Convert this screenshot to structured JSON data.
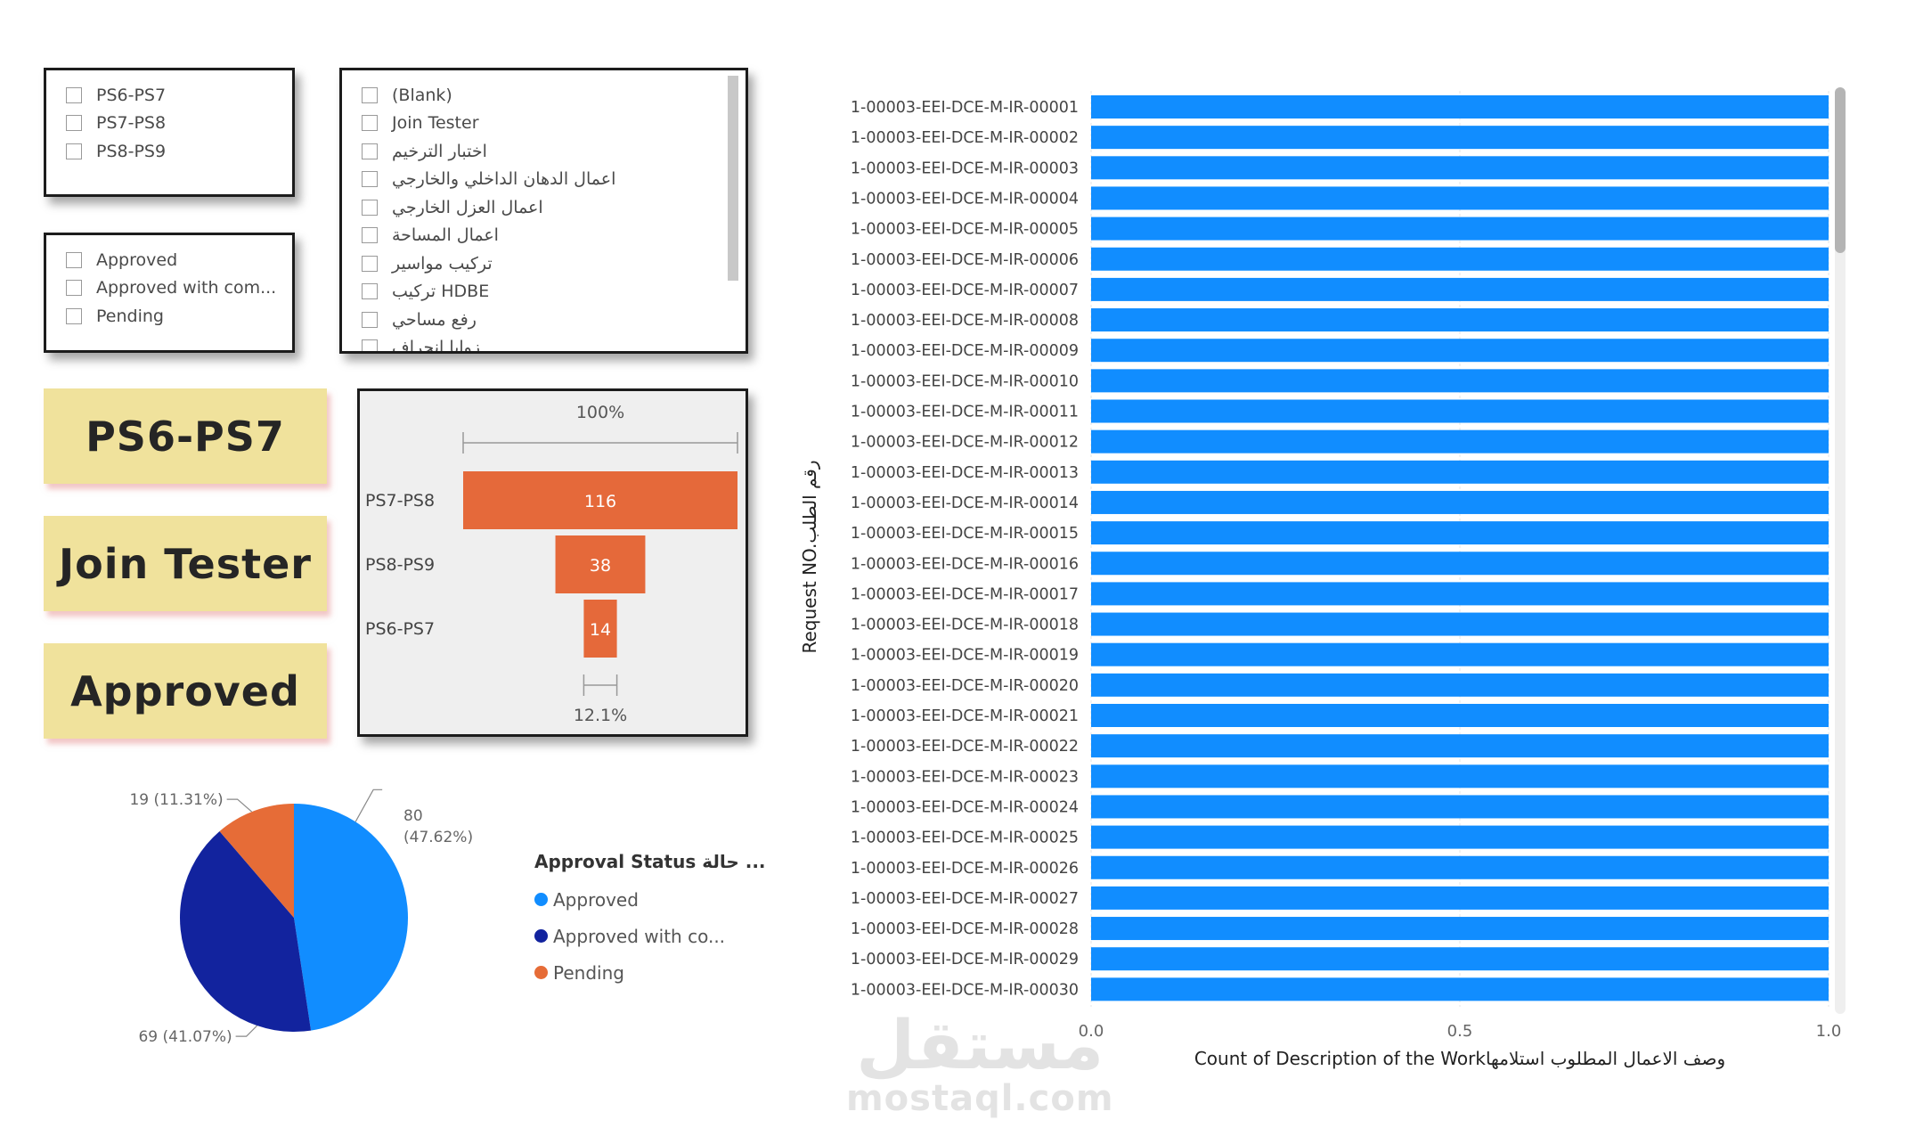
{
  "slicers": {
    "stage": {
      "items": [
        "PS6-PS7",
        "PS7-PS8",
        "PS8-PS9"
      ]
    },
    "status": {
      "items": [
        "Approved",
        "Approved with com...",
        "Pending"
      ]
    },
    "work": {
      "items": [
        "(Blank)",
        "Join Tester",
        "اختبار الترخيم",
        "اعمال الدهان الداخلي والخارجي",
        "اعمال العزل الخارجي",
        "اعمال المساحة",
        "تركيب مواسير",
        "تركيب HDBE",
        "رفع مساحي",
        "زوايا انحراف"
      ]
    }
  },
  "cards": [
    "PS6-PS7",
    "Join Tester",
    "Approved"
  ],
  "chart_data": [
    {
      "type": "funnel",
      "categories": [
        "PS7-PS8",
        "PS8-PS9",
        "PS6-PS7"
      ],
      "values": [
        116,
        38,
        14
      ],
      "top_label": "100%",
      "bottom_label": "12.1%",
      "color": "#e5693a"
    },
    {
      "type": "pie",
      "legend_title": "Approval Status حالة ...",
      "legend_position": "right",
      "slices": [
        {
          "name": "Approved",
          "value": 80,
          "percent": "47.62%",
          "label": "80",
          "label2": "(47.62%)",
          "color": "#118dff"
        },
        {
          "name": "Approved with co...",
          "value": 69,
          "percent": "41.07%",
          "label": "69 (41.07%)",
          "color": "#12239e"
        },
        {
          "name": "Pending",
          "value": 19,
          "percent": "11.31%",
          "label": "19 (11.31%)",
          "color": "#e66c37"
        }
      ]
    },
    {
      "type": "bar",
      "orientation": "horizontal",
      "categories": [
        "1-00003-EEI-DCE-M-IR-00001",
        "1-00003-EEI-DCE-M-IR-00002",
        "1-00003-EEI-DCE-M-IR-00003",
        "1-00003-EEI-DCE-M-IR-00004",
        "1-00003-EEI-DCE-M-IR-00005",
        "1-00003-EEI-DCE-M-IR-00006",
        "1-00003-EEI-DCE-M-IR-00007",
        "1-00003-EEI-DCE-M-IR-00008",
        "1-00003-EEI-DCE-M-IR-00009",
        "1-00003-EEI-DCE-M-IR-00010",
        "1-00003-EEI-DCE-M-IR-00011",
        "1-00003-EEI-DCE-M-IR-00012",
        "1-00003-EEI-DCE-M-IR-00013",
        "1-00003-EEI-DCE-M-IR-00014",
        "1-00003-EEI-DCE-M-IR-00015",
        "1-00003-EEI-DCE-M-IR-00016",
        "1-00003-EEI-DCE-M-IR-00017",
        "1-00003-EEI-DCE-M-IR-00018",
        "1-00003-EEI-DCE-M-IR-00019",
        "1-00003-EEI-DCE-M-IR-00020",
        "1-00003-EEI-DCE-M-IR-00021",
        "1-00003-EEI-DCE-M-IR-00022",
        "1-00003-EEI-DCE-M-IR-00023",
        "1-00003-EEI-DCE-M-IR-00024",
        "1-00003-EEI-DCE-M-IR-00025",
        "1-00003-EEI-DCE-M-IR-00026",
        "1-00003-EEI-DCE-M-IR-00027",
        "1-00003-EEI-DCE-M-IR-00028",
        "1-00003-EEI-DCE-M-IR-00029",
        "1-00003-EEI-DCE-M-IR-00030"
      ],
      "values": [
        1,
        1,
        1,
        1,
        1,
        1,
        1,
        1,
        1,
        1,
        1,
        1,
        1,
        1,
        1,
        1,
        1,
        1,
        1,
        1,
        1,
        1,
        1,
        1,
        1,
        1,
        1,
        1,
        1,
        1
      ],
      "xlim": [
        0,
        1
      ],
      "xticks": [
        "0.0",
        "0.5",
        "1.0"
      ],
      "xlabel": "Count of Description of the Workوصف الاعمال المطلوب استلامها",
      "ylabel": "Request NO.رقم الطلب",
      "grid": true,
      "color": "#118dff"
    }
  ],
  "watermark": {
    "arabic": "مستقل",
    "latin": "mostaql.com"
  }
}
